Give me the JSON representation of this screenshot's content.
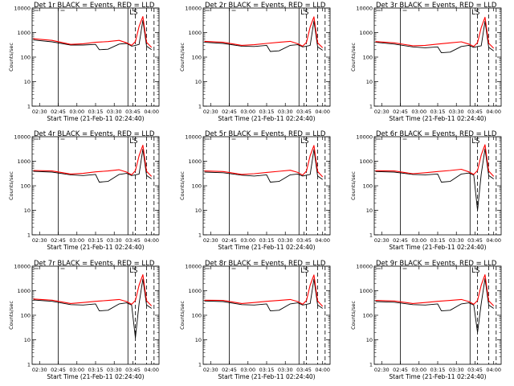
{
  "chart_data": [
    {
      "type": "line",
      "title": "Det 1r BLACK = Events, RED = LLD",
      "xlabel": "Start Time (21-Feb-11 02:24:40)",
      "ylabel": "Counts/sec",
      "y_scale": "log",
      "ylim": [
        1,
        10000
      ],
      "yticks": [
        "1",
        "10",
        "100",
        "1000",
        "10000"
      ],
      "xticks": [
        "02:30",
        "02:45",
        "03:00",
        "03:15",
        "03:30",
        "03:45",
        "04:00"
      ],
      "xlim": [
        "02:24",
        "04:06"
      ],
      "annotation": "LS",
      "time_mark": "02:45",
      "series": [
        {
          "color": "#000000",
          "x": [
            "02:25",
            "02:40",
            "02:55",
            "03:05",
            "03:15",
            "03:18",
            "03:25",
            "03:34",
            "03:40",
            "03:44",
            "03:47",
            "03:50",
            "03:53",
            "03:56",
            "04:00"
          ],
          "y": [
            500,
            420,
            310,
            310,
            330,
            200,
            210,
            340,
            360,
            280,
            300,
            330,
            3200,
            280,
            200
          ]
        },
        {
          "color": "#ff0000",
          "x": [
            "02:25",
            "02:40",
            "02:55",
            "03:05",
            "03:15",
            "03:25",
            "03:34",
            "03:40",
            "03:44",
            "03:47",
            "03:50",
            "03:53",
            "03:56",
            "04:00"
          ],
          "y": [
            560,
            480,
            330,
            350,
            400,
            430,
            480,
            380,
            300,
            430,
            1800,
            4500,
            400,
            250
          ]
        }
      ]
    },
    {
      "type": "line",
      "title": "Det 2r BLACK = Events, RED = LLD",
      "xlabel": "Start Time (21-Feb-11 02:24:40)",
      "ylabel": "Counts/sec",
      "y_scale": "log",
      "ylim": [
        1,
        10000
      ],
      "yticks": [
        "1",
        "10",
        "100",
        "1000",
        "10000"
      ],
      "xticks": [
        "02:30",
        "02:45",
        "03:00",
        "03:15",
        "03:30",
        "03:45",
        "04:00"
      ],
      "xlim": [
        "02:24",
        "04:06"
      ],
      "annotation": "LS",
      "time_mark": "02:45",
      "series": [
        {
          "color": "#000000",
          "x": [
            "02:25",
            "02:40",
            "02:55",
            "03:05",
            "03:15",
            "03:18",
            "03:25",
            "03:34",
            "03:40",
            "03:44",
            "03:47",
            "03:50",
            "03:53",
            "03:56",
            "04:00"
          ],
          "y": [
            400,
            360,
            280,
            270,
            300,
            170,
            180,
            300,
            320,
            260,
            280,
            300,
            3000,
            260,
            190
          ]
        },
        {
          "color": "#ff0000",
          "x": [
            "02:25",
            "02:40",
            "02:55",
            "03:05",
            "03:15",
            "03:25",
            "03:34",
            "03:40",
            "03:44",
            "03:47",
            "03:50",
            "03:53",
            "03:56",
            "04:00"
          ],
          "y": [
            440,
            400,
            300,
            320,
            360,
            400,
            440,
            350,
            280,
            400,
            1700,
            4400,
            380,
            240
          ]
        }
      ]
    },
    {
      "type": "line",
      "title": "Det 3r BLACK = Events, RED = LLD",
      "xlabel": "Start Time (21-Feb-11 02:24:40)",
      "ylabel": "Counts/sec",
      "y_scale": "log",
      "ylim": [
        1,
        10000
      ],
      "yticks": [
        "1",
        "10",
        "100",
        "1000",
        "10000"
      ],
      "xticks": [
        "02:30",
        "02:45",
        "03:00",
        "03:15",
        "03:30",
        "03:45",
        "04:00"
      ],
      "xlim": [
        "02:24",
        "04:06"
      ],
      "annotation": "LS",
      "time_mark": "02:45",
      "series": [
        {
          "color": "#000000",
          "x": [
            "02:25",
            "02:40",
            "02:55",
            "03:05",
            "03:15",
            "03:18",
            "03:25",
            "03:34",
            "03:40",
            "03:44",
            "03:47",
            "03:50",
            "03:53",
            "03:56",
            "04:00"
          ],
          "y": [
            400,
            340,
            260,
            240,
            260,
            150,
            160,
            270,
            300,
            250,
            270,
            290,
            2900,
            250,
            180
          ]
        },
        {
          "color": "#ff0000",
          "x": [
            "02:25",
            "02:40",
            "02:55",
            "03:05",
            "03:15",
            "03:25",
            "03:34",
            "03:40",
            "03:44",
            "03:47",
            "03:50",
            "03:53",
            "03:56",
            "04:00"
          ],
          "y": [
            430,
            380,
            290,
            300,
            340,
            380,
            420,
            340,
            270,
            390,
            1600,
            4200,
            370,
            230
          ]
        }
      ]
    },
    {
      "type": "line",
      "title": "Det 4r BLACK = Events, RED = LLD",
      "xlabel": "Start Time (21-Feb-11 02:24:40)",
      "ylabel": "Counts/sec",
      "y_scale": "log",
      "ylim": [
        1,
        10000
      ],
      "yticks": [
        "1",
        "10",
        "100",
        "1000",
        "10000"
      ],
      "xticks": [
        "02:30",
        "02:45",
        "03:00",
        "03:15",
        "03:30",
        "03:45",
        "04:00"
      ],
      "xlim": [
        "02:24",
        "04:06"
      ],
      "annotation": "LS",
      "time_mark": "02:45",
      "series": [
        {
          "color": "#000000",
          "x": [
            "02:25",
            "02:40",
            "02:55",
            "03:05",
            "03:15",
            "03:18",
            "03:25",
            "03:34",
            "03:40",
            "03:44",
            "03:47",
            "03:50",
            "03:53",
            "03:56",
            "04:00"
          ],
          "y": [
            390,
            360,
            280,
            260,
            290,
            140,
            150,
            290,
            320,
            260,
            280,
            300,
            3100,
            260,
            190
          ]
        },
        {
          "color": "#ff0000",
          "x": [
            "02:25",
            "02:40",
            "02:55",
            "03:05",
            "03:15",
            "03:25",
            "03:34",
            "03:40",
            "03:44",
            "03:47",
            "03:50",
            "03:53",
            "03:56",
            "04:00"
          ],
          "y": [
            420,
            400,
            300,
            320,
            370,
            400,
            450,
            360,
            280,
            410,
            1700,
            4500,
            390,
            240
          ]
        }
      ]
    },
    {
      "type": "line",
      "title": "Det 5r BLACK = Events, RED = LLD",
      "xlabel": "Start Time (21-Feb-11 02:24:40)",
      "ylabel": "Counts/sec",
      "y_scale": "log",
      "ylim": [
        1,
        10000
      ],
      "yticks": [
        "1",
        "10",
        "100",
        "1000",
        "10000"
      ],
      "xticks": [
        "02:30",
        "02:45",
        "03:00",
        "03:15",
        "03:30",
        "03:45",
        "04:00"
      ],
      "xlim": [
        "02:24",
        "04:06"
      ],
      "annotation": "LS",
      "time_mark": "02:45",
      "series": [
        {
          "color": "#000000",
          "x": [
            "02:25",
            "02:40",
            "02:55",
            "03:05",
            "03:15",
            "03:18",
            "03:25",
            "03:34",
            "03:40",
            "03:44",
            "03:47",
            "03:50",
            "03:53",
            "03:56",
            "04:00"
          ],
          "y": [
            360,
            340,
            270,
            250,
            280,
            140,
            150,
            280,
            300,
            250,
            270,
            290,
            3000,
            250,
            180
          ]
        },
        {
          "color": "#ff0000",
          "x": [
            "02:25",
            "02:40",
            "02:55",
            "03:05",
            "03:15",
            "03:25",
            "03:34",
            "03:40",
            "03:44",
            "03:47",
            "03:50",
            "03:53",
            "03:56",
            "04:00"
          ],
          "y": [
            400,
            380,
            290,
            310,
            350,
            390,
            430,
            350,
            270,
            400,
            1700,
            4400,
            380,
            230
          ]
        }
      ]
    },
    {
      "type": "line",
      "title": "Det 6r BLACK = Events, RED = LLD",
      "xlabel": "Start Time (21-Feb-11 02:24:40)",
      "ylabel": "Counts/sec",
      "y_scale": "log",
      "ylim": [
        1,
        10000
      ],
      "yticks": [
        "1",
        "10",
        "100",
        "1000",
        "10000"
      ],
      "xticks": [
        "02:30",
        "02:45",
        "03:00",
        "03:15",
        "03:30",
        "03:45",
        "04:00"
      ],
      "xlim": [
        "02:24",
        "04:06"
      ],
      "annotation": "LS",
      "time_mark": "02:45",
      "series": [
        {
          "color": "#000000",
          "x": [
            "02:25",
            "02:40",
            "02:55",
            "03:05",
            "03:15",
            "03:18",
            "03:25",
            "03:34",
            "03:40",
            "03:44",
            "03:47",
            "03:50",
            "03:53",
            "03:56",
            "04:00"
          ],
          "y": [
            380,
            360,
            290,
            280,
            300,
            140,
            150,
            300,
            330,
            270,
            10,
            300,
            3200,
            260,
            190
          ]
        },
        {
          "color": "#ff0000",
          "x": [
            "02:25",
            "02:40",
            "02:55",
            "03:05",
            "03:15",
            "03:25",
            "03:34",
            "03:40",
            "03:44",
            "03:47",
            "03:50",
            "03:53",
            "03:56",
            "04:00"
          ],
          "y": [
            410,
            400,
            310,
            340,
            380,
            420,
            470,
            370,
            290,
            420,
            1800,
            4700,
            400,
            240
          ]
        }
      ]
    },
    {
      "type": "line",
      "title": "Det 7r BLACK = Events, RED = LLD",
      "xlabel": "Start Time (21-Feb-11 02:24:40)",
      "ylabel": "Counts/sec",
      "y_scale": "log",
      "ylim": [
        1,
        10000
      ],
      "yticks": [
        "1",
        "10",
        "100",
        "1000",
        "10000"
      ],
      "xticks": [
        "02:30",
        "02:45",
        "03:00",
        "03:15",
        "03:30",
        "03:45",
        "04:00"
      ],
      "xlim": [
        "02:24",
        "04:06"
      ],
      "annotation": "LS",
      "time_mark": "02:45",
      "series": [
        {
          "color": "#000000",
          "x": [
            "02:25",
            "02:40",
            "02:55",
            "03:05",
            "03:15",
            "03:18",
            "03:25",
            "03:34",
            "03:40",
            "03:44",
            "03:47",
            "03:50",
            "03:53",
            "03:56",
            "04:00"
          ],
          "y": [
            420,
            370,
            270,
            260,
            290,
            150,
            160,
            290,
            320,
            260,
            12,
            300,
            3000,
            260,
            190
          ]
        },
        {
          "color": "#ff0000",
          "x": [
            "02:25",
            "02:40",
            "02:55",
            "03:05",
            "03:15",
            "03:25",
            "03:34",
            "03:40",
            "03:44",
            "03:47",
            "03:50",
            "03:53",
            "03:56",
            "04:00"
          ],
          "y": [
            460,
            410,
            300,
            330,
            370,
            400,
            440,
            360,
            280,
            400,
            1700,
            4500,
            390,
            240
          ]
        }
      ]
    },
    {
      "type": "line",
      "title": "Det 8r BLACK = Events, RED = LLD",
      "xlabel": "Start Time (21-Feb-11 02:24:40)",
      "ylabel": "Counts/sec",
      "y_scale": "log",
      "ylim": [
        1,
        10000
      ],
      "yticks": [
        "1",
        "10",
        "100",
        "1000",
        "10000"
      ],
      "xticks": [
        "02:30",
        "02:45",
        "03:00",
        "03:15",
        "03:30",
        "03:45",
        "04:00"
      ],
      "xlim": [
        "02:24",
        "04:06"
      ],
      "annotation": "LS",
      "time_mark": "02:45",
      "series": [
        {
          "color": "#000000",
          "x": [
            "02:25",
            "02:40",
            "02:55",
            "03:05",
            "03:15",
            "03:18",
            "03:25",
            "03:34",
            "03:40",
            "03:44",
            "03:47",
            "03:50",
            "03:53",
            "03:56",
            "04:00"
          ],
          "y": [
            380,
            360,
            270,
            260,
            290,
            150,
            160,
            290,
            320,
            260,
            280,
            300,
            3000,
            260,
            190
          ]
        },
        {
          "color": "#ff0000",
          "x": [
            "02:25",
            "02:40",
            "02:55",
            "03:05",
            "03:15",
            "03:25",
            "03:34",
            "03:40",
            "03:44",
            "03:47",
            "03:50",
            "03:53",
            "03:56",
            "04:00"
          ],
          "y": [
            410,
            400,
            300,
            330,
            370,
            400,
            440,
            360,
            280,
            400,
            1700,
            4400,
            380,
            230
          ]
        }
      ]
    },
    {
      "type": "line",
      "title": "Det 9r BLACK = Events, RED = LLD",
      "xlabel": "Start Time (21-Feb-11 02:24:40)",
      "ylabel": "Counts/sec",
      "y_scale": "log",
      "ylim": [
        1,
        10000
      ],
      "yticks": [
        "1",
        "10",
        "100",
        "1000",
        "10000"
      ],
      "xticks": [
        "02:30",
        "02:45",
        "03:00",
        "03:15",
        "03:30",
        "03:45",
        "04:00"
      ],
      "xlim": [
        "02:24",
        "04:06"
      ],
      "annotation": "LS",
      "time_mark": "02:45",
      "series": [
        {
          "color": "#000000",
          "x": [
            "02:25",
            "02:40",
            "02:55",
            "03:05",
            "03:15",
            "03:18",
            "03:25",
            "03:34",
            "03:40",
            "03:44",
            "03:47",
            "03:50",
            "03:53",
            "03:56",
            "04:00"
          ],
          "y": [
            360,
            340,
            270,
            260,
            290,
            150,
            160,
            290,
            320,
            260,
            20,
            300,
            3100,
            260,
            190
          ]
        },
        {
          "color": "#ff0000",
          "x": [
            "02:25",
            "02:40",
            "02:55",
            "03:05",
            "03:15",
            "03:25",
            "03:34",
            "03:40",
            "03:44",
            "03:47",
            "03:50",
            "03:53",
            "03:56",
            "04:00"
          ],
          "y": [
            400,
            380,
            300,
            330,
            370,
            400,
            440,
            360,
            280,
            400,
            1700,
            4500,
            390,
            240
          ]
        }
      ]
    }
  ]
}
